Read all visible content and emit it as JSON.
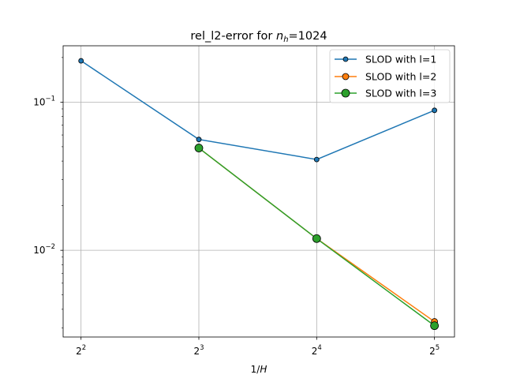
{
  "chart_data": {
    "type": "line",
    "title_prefix": "rel_l2-error for ",
    "title_var": "n",
    "title_sub": "h",
    "title_suffix": "=1024",
    "xlabel_prefix": "1/",
    "xlabel_var": "H",
    "xscale": "log2",
    "yscale": "log10",
    "xlim": [
      3.6,
      36.0
    ],
    "ylim": [
      0.0026,
      0.24
    ],
    "x_ticks": [
      {
        "value": 4,
        "base": "2",
        "exp": "2"
      },
      {
        "value": 8,
        "base": "2",
        "exp": "3"
      },
      {
        "value": 16,
        "base": "2",
        "exp": "4"
      },
      {
        "value": 32,
        "base": "2",
        "exp": "5"
      }
    ],
    "y_ticks": [
      {
        "value": 0.01,
        "base": "10",
        "exp": "−2"
      },
      {
        "value": 0.1,
        "base": "10",
        "exp": "−1"
      }
    ],
    "grid": true,
    "legend_position": "top-right",
    "series": [
      {
        "name": "SLOD with l=1",
        "color": "#1f77b4",
        "marker_size": 3,
        "x": [
          4,
          8,
          16,
          32
        ],
        "values": [
          0.19,
          0.056,
          0.041,
          0.088
        ]
      },
      {
        "name": "SLOD with l=2",
        "color": "#ff7f0e",
        "marker_size": 4,
        "x": [
          8,
          16,
          32
        ],
        "values": [
          0.049,
          0.012,
          0.0033
        ]
      },
      {
        "name": "SLOD with l=3",
        "color": "#2ca02c",
        "marker_size": 5,
        "x": [
          8,
          16,
          32
        ],
        "values": [
          0.049,
          0.012,
          0.0031
        ]
      }
    ]
  }
}
